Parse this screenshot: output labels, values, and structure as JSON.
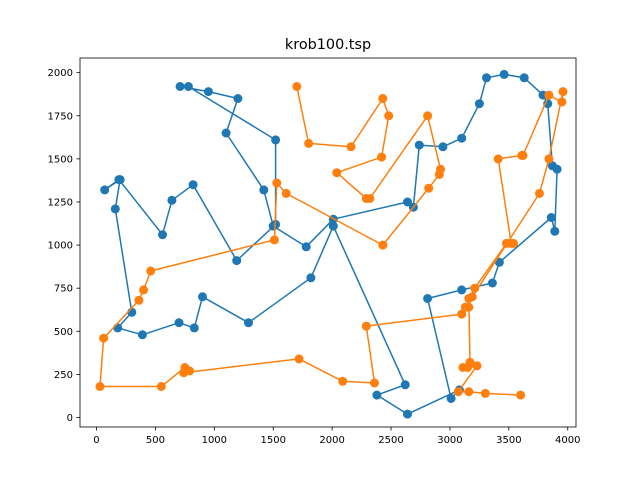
{
  "chart_data": {
    "type": "line",
    "title": "krob100.tsp",
    "xlabel": "",
    "ylabel": "",
    "xlim": [
      -140,
      4070
    ],
    "ylim": [
      -55,
      2085
    ],
    "xticks": [
      0,
      500,
      1000,
      1500,
      2000,
      2500,
      3000,
      3500,
      4000
    ],
    "yticks": [
      0,
      250,
      500,
      750,
      1000,
      1250,
      1500,
      1750,
      2000
    ],
    "grid": false,
    "legend": "none",
    "series": [
      {
        "color": "#1f77b4",
        "marker": "circle",
        "x": [
          710,
          950,
          1200,
          1100,
          1420,
          1500,
          1780,
          2010,
          2640,
          2690,
          2740,
          2940,
          3100,
          3250,
          3310,
          3460,
          3630,
          3790,
          3830,
          3870,
          3910,
          3890,
          3860,
          3420,
          3360,
          3100,
          2810,
          3010,
          3080,
          2640,
          2380,
          2620,
          2010,
          1820,
          1290,
          900,
          830,
          700,
          390,
          180,
          300,
          160,
          200,
          70,
          190,
          560,
          640,
          820,
          1190,
          1520,
          1520,
          780
        ],
        "y": [
          1920,
          1890,
          1850,
          1650,
          1320,
          1110,
          990,
          1150,
          1250,
          1220,
          1580,
          1570,
          1620,
          1820,
          1970,
          1990,
          1970,
          1870,
          1820,
          1460,
          1440,
          1080,
          1160,
          900,
          780,
          740,
          690,
          110,
          160,
          20,
          130,
          190,
          1110,
          810,
          550,
          700,
          520,
          550,
          480,
          520,
          610,
          1210,
          1380,
          1320,
          1380,
          1060,
          1260,
          1350,
          910,
          1120,
          1610,
          1920
        ]
      },
      {
        "color": "#ff7f0e",
        "marker": "circle",
        "x": [
          1700,
          1800,
          2160,
          2430,
          2480,
          2420,
          2040,
          2290,
          2320,
          2810,
          2920,
          2910,
          2820,
          2430,
          1610,
          1530,
          1510,
          460,
          400,
          360,
          60,
          30,
          550,
          750,
          790,
          740,
          1720,
          2090,
          2360,
          2290,
          3100,
          3160,
          3130,
          3210,
          3480,
          3540,
          3520,
          3410,
          3610,
          3620,
          3840,
          3950,
          3960,
          3840,
          3760,
          3190,
          3160,
          3170,
          3110,
          3150,
          3230,
          3070,
          3160,
          3300,
          3600
        ],
        "y": [
          1920,
          1590,
          1570,
          1850,
          1750,
          1510,
          1420,
          1270,
          1270,
          1750,
          1440,
          1410,
          1330,
          1000,
          1300,
          1360,
          1030,
          850,
          740,
          680,
          460,
          180,
          180,
          290,
          270,
          260,
          340,
          210,
          200,
          530,
          600,
          640,
          640,
          750,
          1010,
          1010,
          1010,
          1500,
          1520,
          1520,
          1870,
          1830,
          1890,
          1500,
          1300,
          700,
          690,
          320,
          290,
          290,
          300,
          150,
          150,
          140,
          130
        ]
      }
    ]
  }
}
